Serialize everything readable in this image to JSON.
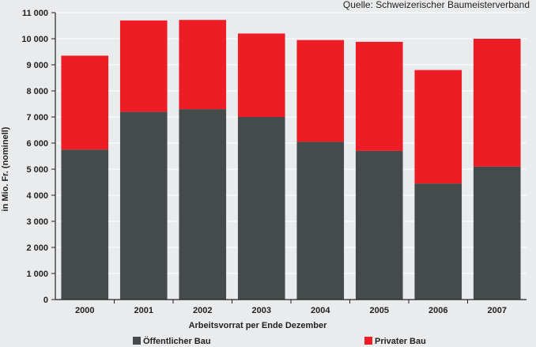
{
  "chart_data": {
    "type": "bar",
    "stacked": true,
    "source": "Quelle: Schweizerischer Baumeisterverband",
    "xlabel": "Arbeitsvorrat per Ende Dezember",
    "ylabel": "in Mio. Fr. (nominell)",
    "ylim": [
      0,
      11000
    ],
    "yticks": [
      0,
      1000,
      2000,
      3000,
      4000,
      5000,
      6000,
      7000,
      8000,
      9000,
      10000,
      11000
    ],
    "ytick_labels": [
      "0",
      "1 000",
      "2 000",
      "3 000",
      "4 000",
      "5 000",
      "6 000",
      "7 000",
      "8 000",
      "9 000",
      "10 000",
      "11 000"
    ],
    "grid": true,
    "legend_position": "bottom",
    "categories": [
      "2000",
      "2001",
      "2002",
      "2003",
      "2004",
      "2005",
      "2006",
      "2007"
    ],
    "series": [
      {
        "name": "Öffentlicher Bau",
        "color": "#454a4a",
        "values": [
          5750,
          7200,
          7300,
          7000,
          6050,
          5700,
          4450,
          5100
        ]
      },
      {
        "name": "Privater Bau",
        "color": "#ee1c24",
        "values": [
          3600,
          3500,
          3420,
          3200,
          3900,
          4180,
          4350,
          4900
        ]
      }
    ]
  }
}
